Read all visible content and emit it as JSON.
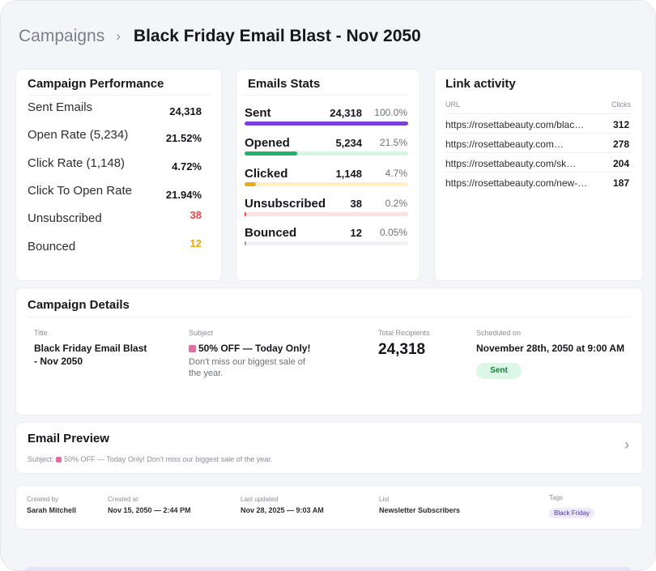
{
  "breadcrumb": {
    "parent": "Campaigns",
    "separator": "›",
    "current": "Black Friday Email Blast - Nov 2050"
  },
  "performance": {
    "title": "Campaign Performance",
    "rows": [
      {
        "label": "Sent Emails",
        "value": "24,318",
        "color": "#16171a"
      },
      {
        "label": "Open Rate (5,234)",
        "value": "21.52%",
        "color": "#16171a"
      },
      {
        "label": "Click Rate (1,148)",
        "value": "4.72%",
        "color": "#16171a"
      },
      {
        "label": "Click To Open Rate",
        "value": "21.94%",
        "color": "#16171a"
      },
      {
        "label": "Unsubscribed",
        "value": "38",
        "color": "#e0484a"
      },
      {
        "label": "Bounced",
        "value": "12",
        "color": "#e3a313"
      }
    ]
  },
  "stats": {
    "title": "Emails Stats",
    "rows": [
      {
        "label": "Sent",
        "count": "24,318",
        "pct": "100.0%",
        "fraction": 1.0,
        "bar_color": "#7b3fdc",
        "track_color": "#ede4fb"
      },
      {
        "label": "Opened",
        "count": "5,234",
        "pct": "21.5%",
        "fraction": 0.32,
        "bar_color": "#1fb36b",
        "track_color": "#d6f6e4"
      },
      {
        "label": "Clicked",
        "count": "1,148",
        "pct": "4.7%",
        "fraction": 0.07,
        "bar_color": "#f0a616",
        "track_color": "#fdf0c8"
      },
      {
        "label": "Unsubscribed",
        "count": "38",
        "pct": "0.2%",
        "fraction": 0.01,
        "bar_color": "#e0484a",
        "track_color": "#fbe1e1"
      },
      {
        "label": "Bounced",
        "count": "12",
        "pct": "0.05%",
        "fraction": 0.005,
        "bar_color": "#9aa0a8",
        "track_color": "#f1f2f4"
      }
    ]
  },
  "links": {
    "title": "Link activity",
    "header_url": "URL",
    "header_clicks": "Clicks",
    "rows": [
      {
        "url": "https://rosettabeauty.com/blac…",
        "clicks": "312"
      },
      {
        "url": "https://rosettabeauty.com…",
        "clicks": "278"
      },
      {
        "url": "https://rosettabeauty.com/sk…",
        "clicks": "204"
      },
      {
        "url": "https://rosettabeauty.com/new-…",
        "clicks": "187"
      }
    ]
  },
  "details": {
    "title": "Campaign Details",
    "title_label": "Title",
    "title_line1": "Black Friday Email Blast",
    "title_line2": "- Nov 2050",
    "subject_label": "Subject",
    "subject_emoji": "shopping-bags-emoji",
    "subject_main": "50% OFF — Today Only!",
    "subject_sub1": "Don't miss our biggest sale of",
    "subject_sub2": "the year.",
    "recipients_label": "Total Recipients",
    "recipients_value": "24,318",
    "scheduled_label": "Scheduled on",
    "scheduled_value": "November 28th, 2050 at 9:00 AM",
    "status": "Sent"
  },
  "preview": {
    "title": "Email Preview",
    "subject_prefix": "Subject:",
    "subject_text": "50% OFF — Today Only! Don't miss our biggest sale of the year.",
    "chevron": "›"
  },
  "meta": {
    "created_by_label": "Created by",
    "created_by": "Sarah Mitchell",
    "created_at_label": "Created at",
    "created_at": "Nov 15, 2050 — 2:44 PM",
    "updated_label": "Last updated",
    "updated": "Nov 28, 2025 — 9:03 AM",
    "list_label": "List",
    "list": "Newsletter Subscribers",
    "tags_label": "Tags",
    "tag": "Black Friday"
  }
}
